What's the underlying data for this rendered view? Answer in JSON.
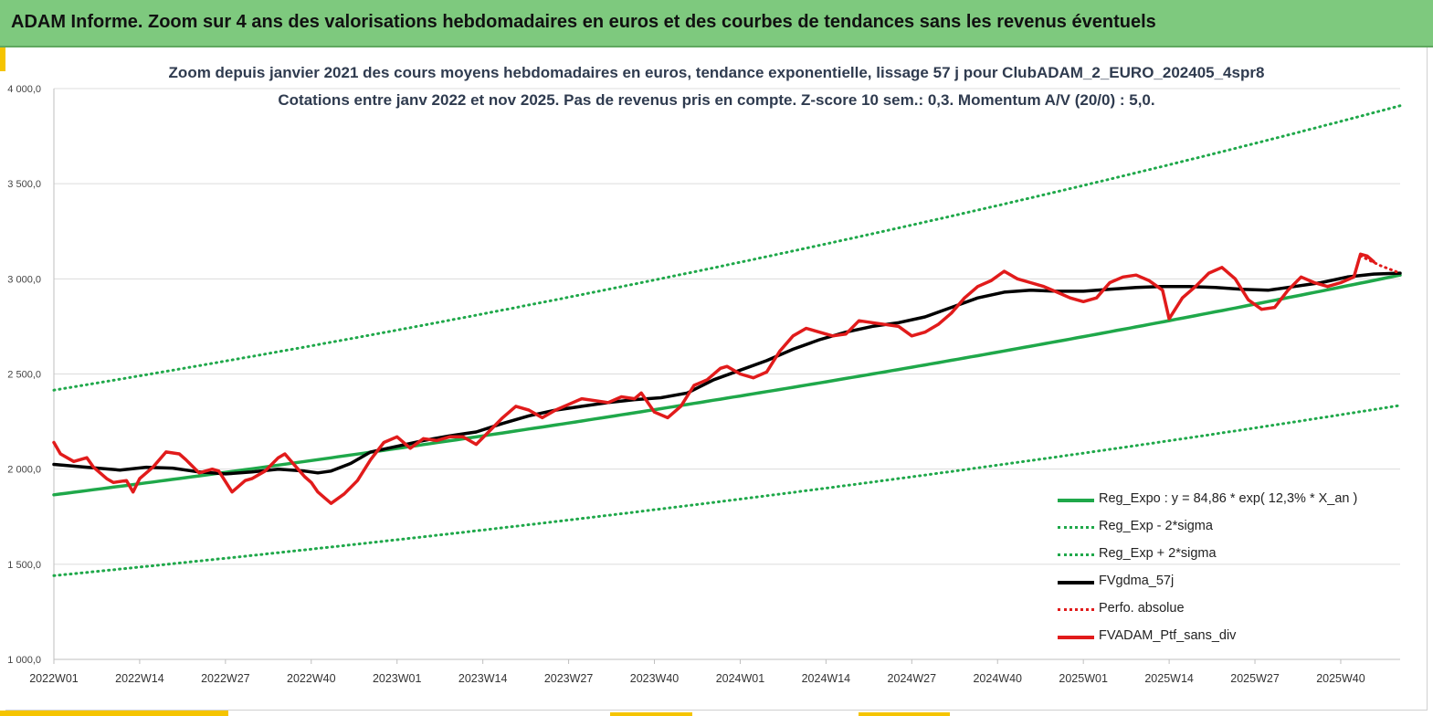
{
  "header": {
    "title": "ADAM Informe. Zoom sur 4 ans des valorisations hebdomadaires en euros et des courbes de tendances sans les revenus éventuels"
  },
  "chart_data": {
    "type": "line",
    "title": "Zoom depuis janvier 2021 des cours moyens hebdomadaires  en euros, tendance exponentielle, lissage 57 j  pour ClubADAM_2_EURO_202405_4spr8",
    "subtitle": "Cotations  entre janv 2022 et nov 2025. Pas de revenus pris en compte. Z-score 10 sem.: 0,3. Momentum A/V (20/0) : 5,0.",
    "xlabel": "",
    "ylabel": "",
    "ylim": [
      1000,
      4000
    ],
    "yticks": [
      "1 000,0",
      "1 500,0",
      "2 000,0",
      "2 500,0",
      "3 000,0",
      "3 500,0",
      "4 000,0"
    ],
    "ytick_values": [
      1000,
      1500,
      2000,
      2500,
      3000,
      3500,
      4000
    ],
    "xticks": [
      "2022W01",
      "2022W14",
      "2022W27",
      "2022W40",
      "2023W01",
      "2023W14",
      "2023W27",
      "2023W40",
      "2024W01",
      "2024W14",
      "2024W27",
      "2024W40",
      "2025W01",
      "2025W14",
      "2025W27",
      "2025W40"
    ],
    "xtick_weeks": [
      0,
      13,
      26,
      39,
      52,
      65,
      78,
      91,
      104,
      117,
      130,
      143,
      156,
      169,
      182,
      195
    ],
    "x_range_weeks": [
      0,
      204
    ],
    "grid": "horizontal",
    "legend_position": "bottom-right",
    "series": [
      {
        "name": "Reg_Expo : y = 84,86 * exp( 12,3% *  X_an )",
        "style": "solid",
        "color": "#1fa84a",
        "weeks": [
          0,
          204
        ],
        "values": [
          1865,
          3020
        ],
        "curve": "exp"
      },
      {
        "name": "Reg_Exp - 2*sigma",
        "style": "dotted",
        "color": "#1fa84a",
        "weeks": [
          0,
          204
        ],
        "values": [
          1440,
          2335
        ],
        "curve": "exp"
      },
      {
        "name": "Reg_Exp + 2*sigma",
        "style": "dotted",
        "color": "#1fa84a",
        "weeks": [
          0,
          204
        ],
        "values": [
          2415,
          3910
        ],
        "curve": "exp"
      },
      {
        "name": "FVgdma_57j",
        "style": "solid",
        "color": "#000000",
        "weeks": [
          0,
          5,
          10,
          14,
          18,
          22,
          26,
          30,
          34,
          38,
          40,
          42,
          45,
          48,
          52,
          56,
          60,
          64,
          68,
          72,
          76,
          80,
          84,
          88,
          92,
          96,
          100,
          104,
          108,
          112,
          116,
          120,
          124,
          128,
          132,
          136,
          140,
          144,
          148,
          152,
          156,
          160,
          164,
          168,
          172,
          176,
          180,
          184,
          188,
          192,
          196,
          200,
          204
        ],
        "values": [
          2025,
          2010,
          1995,
          2010,
          2005,
          1985,
          1975,
          1985,
          2000,
          1990,
          1980,
          1990,
          2030,
          2090,
          2120,
          2150,
          2175,
          2195,
          2240,
          2280,
          2310,
          2330,
          2350,
          2365,
          2375,
          2400,
          2470,
          2520,
          2570,
          2630,
          2680,
          2720,
          2750,
          2770,
          2800,
          2850,
          2900,
          2930,
          2940,
          2935,
          2935,
          2945,
          2955,
          2960,
          2960,
          2955,
          2945,
          2940,
          2960,
          2980,
          3010,
          3025,
          3030
        ]
      },
      {
        "name": "Perfo. absolue",
        "style": "dotted",
        "color": "#e11b1b",
        "weeks": [
          198,
          201,
          204
        ],
        "values": [
          3120,
          3070,
          3030
        ]
      },
      {
        "name": "FVADAM_Ptf_sans_div",
        "style": "solid",
        "color": "#e11b1b",
        "weeks": [
          0,
          1,
          3,
          5,
          6,
          8,
          9,
          11,
          12,
          13,
          15,
          17,
          19,
          20,
          22,
          24,
          25,
          27,
          29,
          30,
          32,
          34,
          35,
          37,
          38,
          39,
          40,
          41,
          42,
          44,
          46,
          48,
          50,
          52,
          54,
          56,
          58,
          60,
          62,
          64,
          66,
          68,
          70,
          72,
          74,
          76,
          78,
          80,
          82,
          84,
          86,
          88,
          89,
          91,
          93,
          95,
          97,
          99,
          101,
          102,
          104,
          106,
          108,
          110,
          112,
          114,
          116,
          118,
          120,
          122,
          124,
          126,
          128,
          130,
          132,
          134,
          136,
          138,
          140,
          142,
          144,
          146,
          148,
          150,
          152,
          154,
          156,
          158,
          160,
          162,
          164,
          166,
          168,
          169,
          171,
          173,
          175,
          177,
          179,
          181,
          183,
          185,
          187,
          189,
          191,
          193,
          195,
          197,
          198,
          199,
          200
        ],
        "values": [
          2140,
          2080,
          2040,
          2060,
          2010,
          1950,
          1930,
          1940,
          1880,
          1950,
          2010,
          2090,
          2080,
          2050,
          1980,
          2000,
          1990,
          1880,
          1940,
          1950,
          1990,
          2060,
          2080,
          2000,
          1960,
          1930,
          1880,
          1850,
          1820,
          1870,
          1940,
          2050,
          2140,
          2170,
          2110,
          2160,
          2150,
          2170,
          2170,
          2130,
          2200,
          2270,
          2330,
          2310,
          2270,
          2310,
          2340,
          2370,
          2360,
          2350,
          2380,
          2370,
          2400,
          2300,
          2270,
          2330,
          2440,
          2470,
          2530,
          2540,
          2500,
          2480,
          2510,
          2620,
          2700,
          2740,
          2720,
          2700,
          2710,
          2780,
          2770,
          2760,
          2750,
          2700,
          2720,
          2760,
          2820,
          2900,
          2960,
          2990,
          3040,
          3000,
          2980,
          2960,
          2930,
          2900,
          2880,
          2900,
          2980,
          3010,
          3020,
          2990,
          2940,
          2790,
          2900,
          2960,
          3030,
          3060,
          3000,
          2890,
          2840,
          2850,
          2940,
          3010,
          2980,
          2960,
          2980,
          3010,
          3130,
          3120,
          3090
        ]
      }
    ]
  }
}
